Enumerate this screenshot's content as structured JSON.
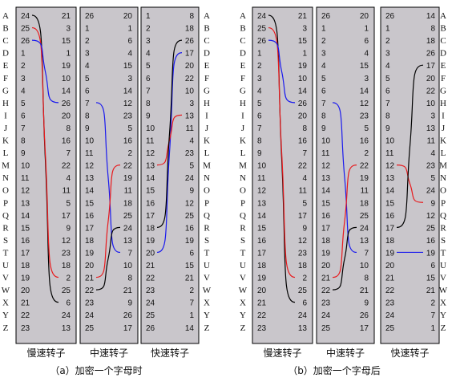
{
  "alphabet": [
    "A",
    "B",
    "C",
    "D",
    "E",
    "F",
    "G",
    "H",
    "I",
    "J",
    "K",
    "L",
    "M",
    "N",
    "O",
    "P",
    "Q",
    "R",
    "S",
    "T",
    "U",
    "V",
    "W",
    "X",
    "Y",
    "Z"
  ],
  "rotor_labels": [
    "慢速转子",
    "中速转子",
    "快速转子"
  ],
  "colors": {
    "rotor_bg": "#c9c6cb",
    "black": "#000000",
    "red": "#e8191c",
    "blue": "#1a1aee"
  },
  "panels": [
    {
      "caption": "（a）加密一个字母时",
      "rotors": [
        {
          "left": [
            24,
            25,
            26,
            1,
            2,
            3,
            4,
            5,
            6,
            7,
            8,
            9,
            10,
            11,
            12,
            13,
            14,
            15,
            16,
            17,
            18,
            19,
            20,
            21,
            22,
            23
          ],
          "right": [
            21,
            3,
            15,
            1,
            19,
            10,
            14,
            26,
            20,
            8,
            16,
            7,
            22,
            4,
            11,
            5,
            17,
            9,
            12,
            23,
            18,
            2,
            25,
            6,
            24,
            13
          ]
        },
        {
          "left": [
            26,
            1,
            2,
            3,
            4,
            5,
            6,
            7,
            8,
            9,
            10,
            11,
            12,
            13,
            14,
            15,
            16,
            17,
            18,
            19,
            20,
            21,
            22,
            23,
            24,
            25
          ],
          "right": [
            20,
            1,
            6,
            4,
            15,
            3,
            14,
            12,
            23,
            5,
            16,
            2,
            22,
            19,
            11,
            18,
            25,
            24,
            13,
            7,
            10,
            8,
            21,
            9,
            26,
            17
          ]
        },
        {
          "left": [
            1,
            2,
            3,
            4,
            5,
            6,
            7,
            8,
            9,
            10,
            11,
            12,
            13,
            14,
            15,
            16,
            17,
            18,
            19,
            20,
            21,
            22,
            23,
            24,
            25,
            26
          ],
          "right": [
            8,
            18,
            26,
            17,
            20,
            22,
            10,
            3,
            13,
            11,
            4,
            23,
            5,
            24,
            9,
            12,
            25,
            16,
            19,
            6,
            15,
            21,
            2,
            7,
            1,
            14
          ]
        }
      ],
      "wires": [
        {
          "color": "black",
          "r": 0,
          "from": 0,
          "to": 23
        },
        {
          "color": "red",
          "r": 0,
          "from": 1,
          "to": 21
        },
        {
          "color": "blue",
          "r": 0,
          "from": 2,
          "to": 7
        },
        {
          "color": "blue",
          "r": 1,
          "from": 7,
          "to": 19
        },
        {
          "color": "red",
          "r": 1,
          "from": 21,
          "to": 12
        },
        {
          "color": "black",
          "r": 1,
          "from": 22,
          "to": 17
        },
        {
          "color": "blue",
          "r": 2,
          "from": 19,
          "to": 3
        },
        {
          "color": "red",
          "r": 2,
          "from": 12,
          "to": 8
        },
        {
          "color": "black",
          "r": 2,
          "from": 17,
          "to": 2
        }
      ]
    },
    {
      "caption": "（b）加密一个字母后",
      "rotors": [
        {
          "left": [
            24,
            25,
            26,
            1,
            2,
            3,
            4,
            5,
            6,
            7,
            8,
            9,
            10,
            11,
            12,
            13,
            14,
            15,
            16,
            17,
            18,
            19,
            20,
            21,
            22,
            23
          ],
          "right": [
            21,
            3,
            15,
            1,
            19,
            10,
            14,
            26,
            20,
            8,
            16,
            7,
            22,
            4,
            11,
            5,
            17,
            9,
            12,
            23,
            18,
            2,
            25,
            6,
            24,
            13
          ]
        },
        {
          "left": [
            26,
            1,
            2,
            3,
            4,
            5,
            6,
            7,
            8,
            9,
            10,
            11,
            12,
            13,
            14,
            15,
            16,
            17,
            18,
            19,
            20,
            21,
            22,
            23,
            24,
            25
          ],
          "right": [
            20,
            1,
            6,
            4,
            15,
            3,
            14,
            12,
            23,
            5,
            16,
            2,
            22,
            19,
            11,
            18,
            25,
            24,
            13,
            7,
            10,
            8,
            21,
            9,
            26,
            17
          ]
        },
        {
          "left": [
            26,
            1,
            2,
            3,
            4,
            5,
            6,
            7,
            8,
            9,
            10,
            11,
            12,
            13,
            14,
            15,
            16,
            17,
            18,
            19,
            20,
            21,
            22,
            23,
            24,
            25
          ],
          "right": [
            14,
            8,
            18,
            26,
            17,
            20,
            22,
            10,
            3,
            13,
            11,
            4,
            23,
            5,
            24,
            9,
            12,
            25,
            16,
            19,
            6,
            15,
            21,
            2,
            7,
            1
          ]
        }
      ],
      "wires": [
        {
          "color": "black",
          "r": 0,
          "from": 0,
          "to": 23
        },
        {
          "color": "red",
          "r": 0,
          "from": 1,
          "to": 21
        },
        {
          "color": "blue",
          "r": 0,
          "from": 2,
          "to": 7
        },
        {
          "color": "blue",
          "r": 1,
          "from": 7,
          "to": 19
        },
        {
          "color": "red",
          "r": 1,
          "from": 21,
          "to": 12
        },
        {
          "color": "black",
          "r": 1,
          "from": 22,
          "to": 17
        },
        {
          "color": "blue",
          "r": 2,
          "from": 19,
          "to": 19
        },
        {
          "color": "red",
          "r": 2,
          "from": 12,
          "to": 15
        },
        {
          "color": "black",
          "r": 2,
          "from": 17,
          "to": 4
        }
      ]
    }
  ]
}
